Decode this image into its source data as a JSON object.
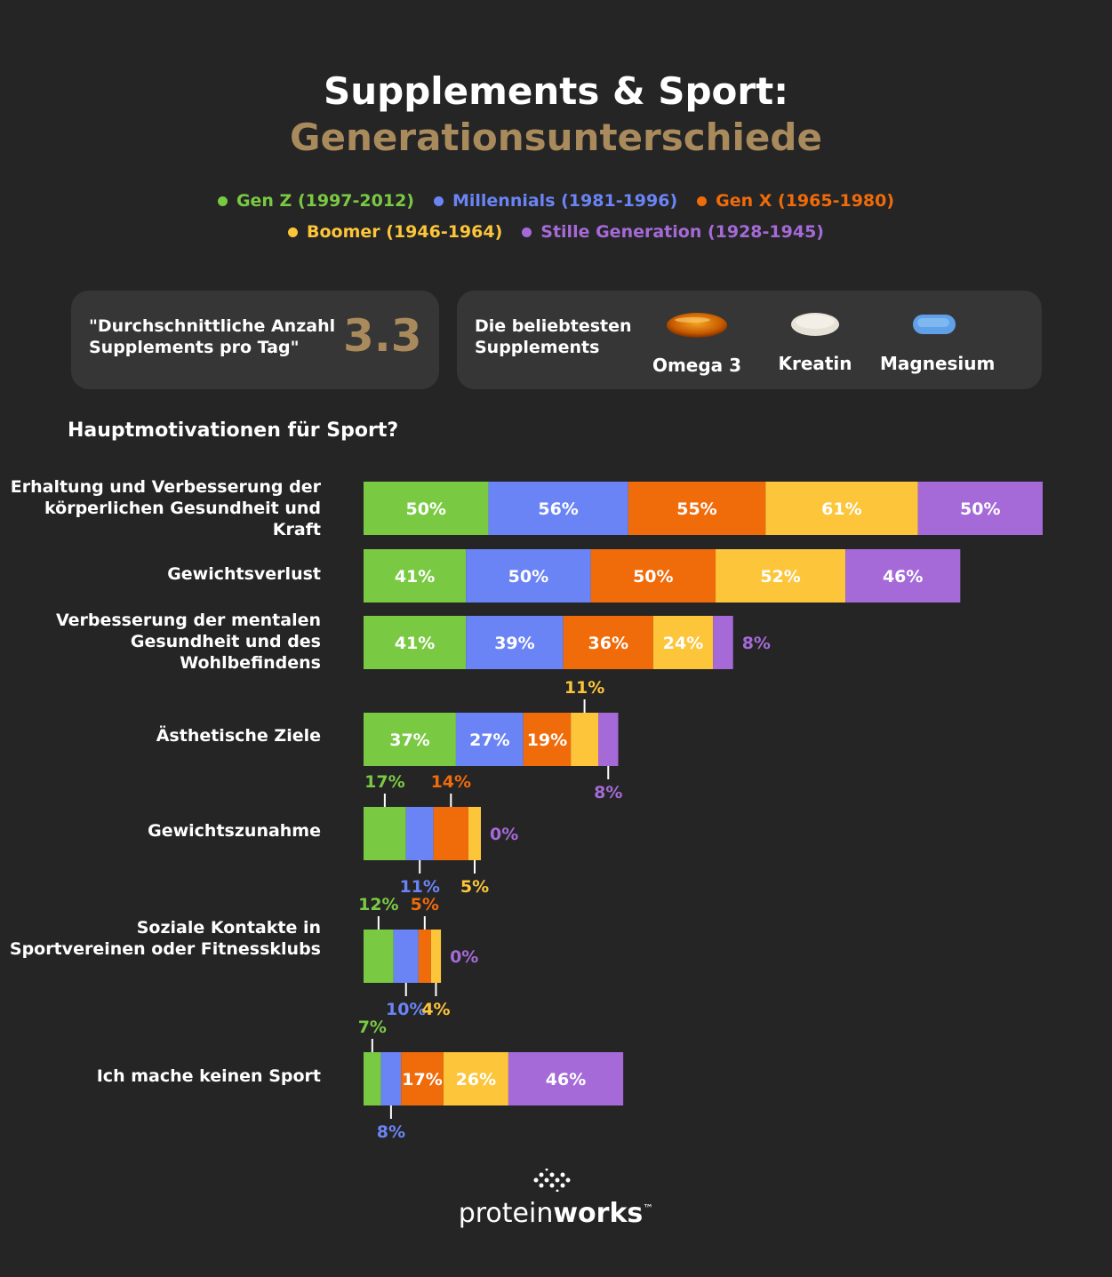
{
  "header": {
    "title_line1": "Supplements & Sport:",
    "title_line2": "Generationsunterschiede",
    "title_line2_color": "#a98a5c"
  },
  "legend": [
    {
      "label": "Gen Z (1997-2012)",
      "color": "#7ac943"
    },
    {
      "label": "Millennials (1981-1996)",
      "color": "#6b84f5"
    },
    {
      "label": "Gen X (1965-1980)",
      "color": "#f06b0a"
    },
    {
      "label": "Boomer (1946-1964)",
      "color": "#fcc53a"
    },
    {
      "label": "Stille Generation (1928-1945)",
      "color": "#a56ad8"
    }
  ],
  "stats": {
    "avg_label": "\"Durchschnittliche Anzahl Supplements pro Tag\"",
    "avg_value": "3.3",
    "avg_value_color": "#a98a5c",
    "popular_label": "Die beliebtesten Supplements",
    "supplements": [
      {
        "name": "Omega 3",
        "icon": "omega3-capsule-icon"
      },
      {
        "name": "Kreatin",
        "icon": "kreatin-tablet-icon"
      },
      {
        "name": "Magnesium",
        "icon": "magnesium-tablet-icon"
      }
    ]
  },
  "chart_data": {
    "type": "bar",
    "orientation": "horizontal-stacked",
    "title": "Hauptmotivationen für Sport?",
    "categories": [
      "Erhaltung und Verbesserung der körperlichen Gesundheit und Kraft",
      "Gewichtsverlust",
      "Verbesserung der mentalen Gesundheit und des Wohlbefindens",
      "Ästhetische Ziele",
      "Gewichtszunahme",
      "Soziale Kontakte in Sportvereinen oder Fitnessklubs",
      "Ich mache keinen Sport"
    ],
    "series": [
      {
        "name": "Gen Z (1997-2012)",
        "values": [
          50,
          41,
          41,
          37,
          17,
          12,
          7
        ]
      },
      {
        "name": "Millennials (1981-1996)",
        "values": [
          56,
          50,
          39,
          27,
          11,
          10,
          8
        ]
      },
      {
        "name": "Gen X (1965-1980)",
        "values": [
          55,
          50,
          36,
          19,
          14,
          5,
          17
        ]
      },
      {
        "name": "Boomer (1946-1964)",
        "values": [
          61,
          52,
          24,
          11,
          5,
          4,
          26
        ]
      },
      {
        "name": "Stille Generation (1928-1945)",
        "values": [
          50,
          46,
          8,
          8,
          0,
          0,
          46
        ]
      }
    ],
    "value_suffix": "%",
    "outside_label_placement": [
      [
        null,
        null,
        null,
        null,
        null
      ],
      [
        null,
        null,
        null,
        null,
        null
      ],
      [
        null,
        null,
        null,
        null,
        "right"
      ],
      [
        null,
        null,
        null,
        "above",
        "below"
      ],
      [
        "above",
        "below",
        "above",
        "below",
        "right"
      ],
      [
        "above",
        "below",
        "above",
        "below",
        "right"
      ],
      [
        "above",
        "below",
        null,
        null,
        null
      ]
    ]
  },
  "footer": {
    "brand_light": "protein",
    "brand_bold": "works",
    "brand_mark": "™"
  }
}
